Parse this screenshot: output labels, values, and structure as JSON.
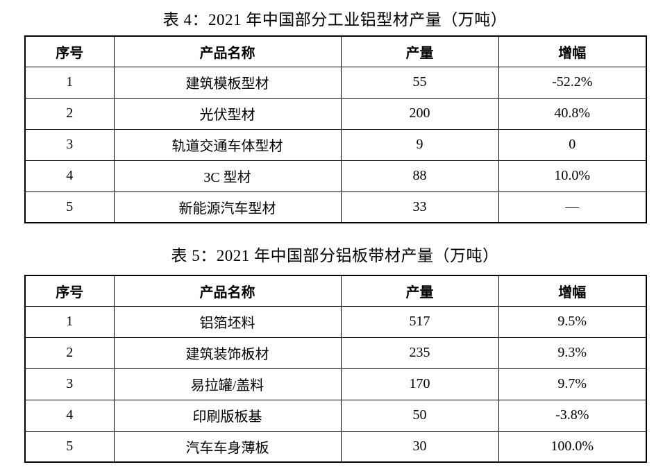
{
  "page": {
    "background_color": "#ffffff",
    "text_color": "#000000",
    "border_color": "#000000"
  },
  "tables": [
    {
      "title": "表 4：2021 年中国部分工业铝型材产量（万吨）",
      "headers": [
        "序号",
        "产品名称",
        "产量",
        "增幅"
      ],
      "rows": [
        [
          "1",
          "建筑模板型材",
          "55",
          "-52.2%"
        ],
        [
          "2",
          "光伏型材",
          "200",
          "40.8%"
        ],
        [
          "3",
          "轨道交通车体型材",
          "9",
          "0"
        ],
        [
          "4",
          "3C 型材",
          "88",
          "10.0%"
        ],
        [
          "5",
          "新能源汽车型材",
          "33",
          "—"
        ]
      ]
    },
    {
      "title": "表 5：2021 年中国部分铝板带材产量（万吨）",
      "headers": [
        "序号",
        "产品名称",
        "产量",
        "增幅"
      ],
      "rows": [
        [
          "1",
          "铝箔坯料",
          "517",
          "9.5%"
        ],
        [
          "2",
          "建筑装饰板材",
          "235",
          "9.3%"
        ],
        [
          "3",
          "易拉罐/盖料",
          "170",
          "9.7%"
        ],
        [
          "4",
          "印刷版板基",
          "50",
          "-3.8%"
        ],
        [
          "5",
          "汽车车身薄板",
          "30",
          "100.0%"
        ]
      ]
    }
  ]
}
